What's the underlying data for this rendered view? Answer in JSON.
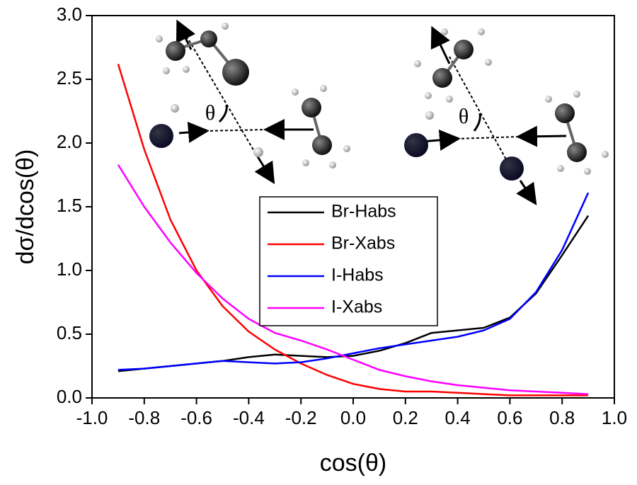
{
  "chart_data": {
    "type": "line",
    "x_label": "cos(θ)",
    "y_label": "dσ/dcos(θ)",
    "x": [
      -0.9,
      -0.8,
      -0.7,
      -0.6,
      -0.5,
      -0.4,
      -0.3,
      -0.2,
      -0.1,
      0.0,
      0.1,
      0.2,
      0.3,
      0.4,
      0.5,
      0.6,
      0.7,
      0.8,
      0.9
    ],
    "series": [
      {
        "name": "Br-Habs",
        "color": "#000000",
        "values": [
          0.21,
          0.23,
          0.25,
          0.27,
          0.29,
          0.32,
          0.34,
          0.33,
          0.32,
          0.33,
          0.37,
          0.43,
          0.51,
          0.53,
          0.55,
          0.63,
          0.82,
          1.12,
          1.43
        ]
      },
      {
        "name": "Br-Xabs",
        "color": "#ff0000",
        "values": [
          2.62,
          1.95,
          1.4,
          1.0,
          0.72,
          0.52,
          0.38,
          0.27,
          0.18,
          0.11,
          0.07,
          0.05,
          0.05,
          0.04,
          0.03,
          0.02,
          0.02,
          0.02,
          0.02
        ]
      },
      {
        "name": "I-Habs",
        "color": "#0000ff",
        "values": [
          0.22,
          0.23,
          0.25,
          0.27,
          0.29,
          0.28,
          0.27,
          0.28,
          0.31,
          0.35,
          0.39,
          0.42,
          0.45,
          0.48,
          0.53,
          0.62,
          0.83,
          1.16,
          1.61
        ]
      },
      {
        "name": "I-Xabs",
        "color": "#ff00ff",
        "values": [
          1.83,
          1.5,
          1.22,
          0.98,
          0.78,
          0.62,
          0.51,
          0.45,
          0.38,
          0.3,
          0.22,
          0.17,
          0.13,
          0.1,
          0.08,
          0.06,
          0.05,
          0.04,
          0.03
        ]
      }
    ],
    "xlim": [
      -1.0,
      1.0
    ],
    "xticks": [
      {
        "value": -1.0,
        "label": "-1.0"
      },
      -0.8,
      -0.6,
      -0.4,
      -0.2,
      {
        "value": 0.0,
        "label": "0.0"
      },
      0.2,
      0.4,
      0.6,
      0.8,
      {
        "value": 1.0,
        "label": "1.0"
      }
    ],
    "ylim": [
      0.0,
      3.0
    ],
    "yticks": [
      {
        "value": 0.0,
        "label": "0.0"
      },
      0.5,
      {
        "value": 1.0,
        "label": "1.0"
      },
      1.5,
      {
        "value": 2.0,
        "label": "2.0"
      },
      2.5,
      {
        "value": 3.0,
        "label": "3.0"
      }
    ],
    "annotations": [
      "θ",
      "θ"
    ]
  }
}
